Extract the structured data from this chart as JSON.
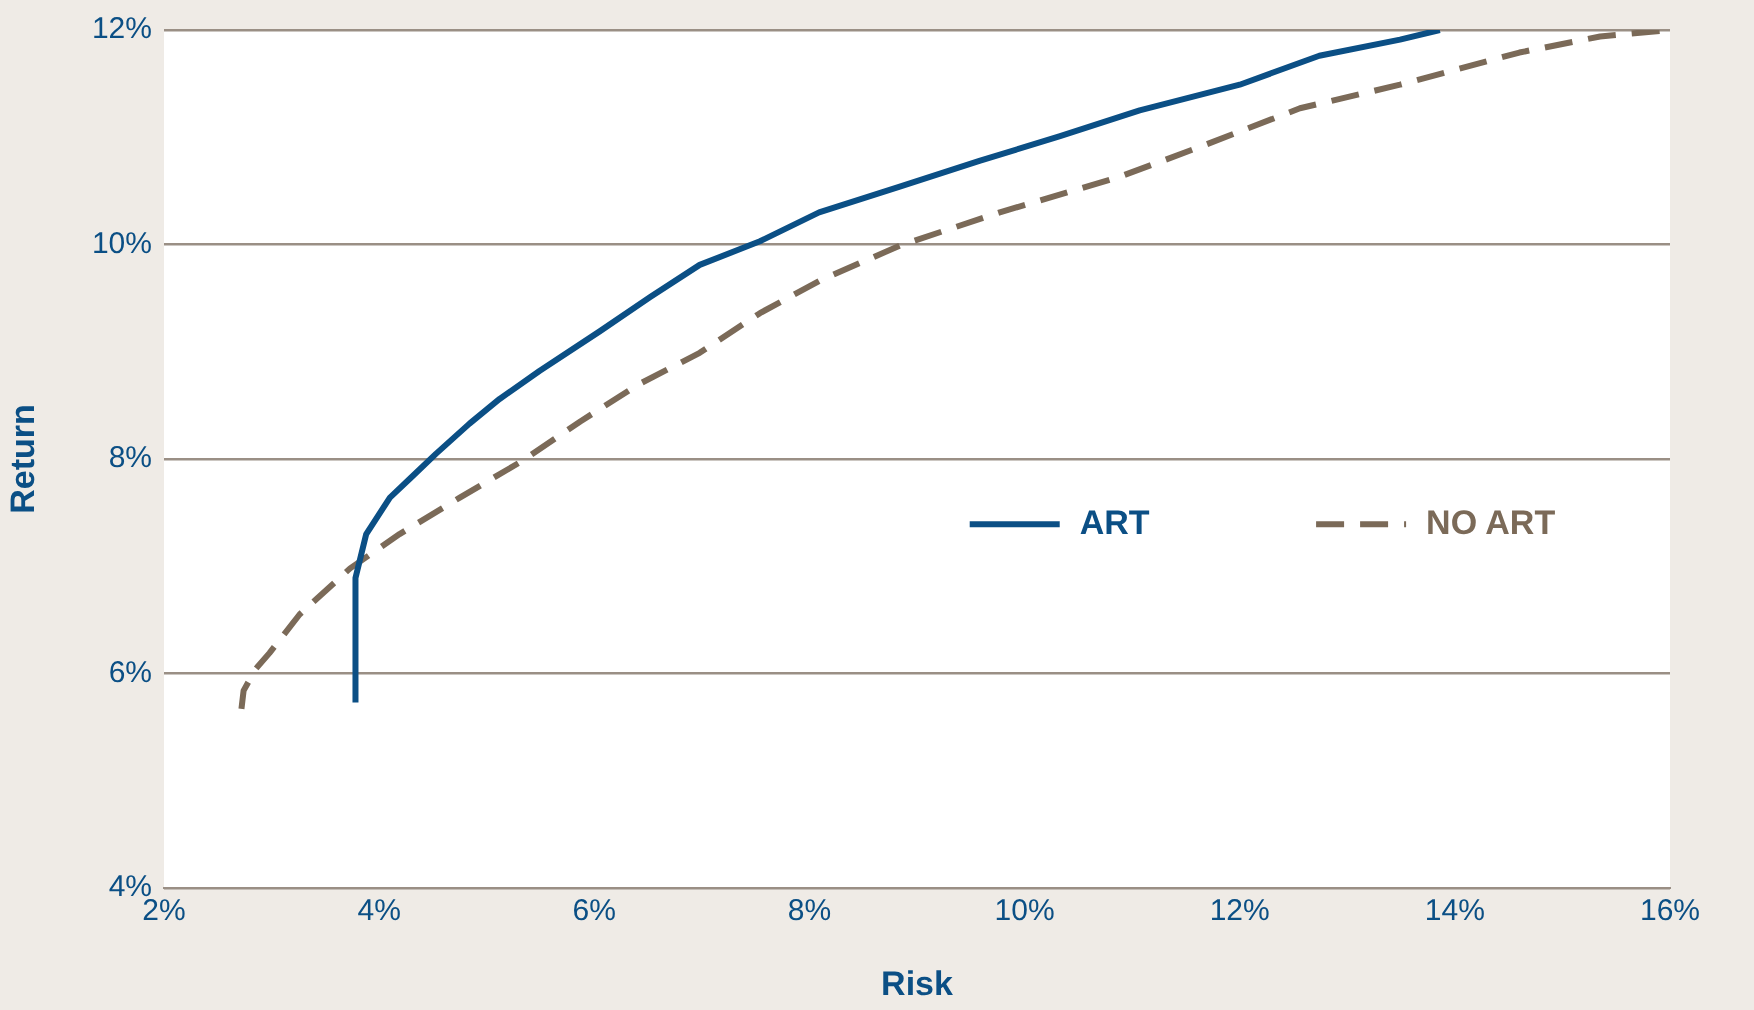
{
  "chart_data": {
    "type": "line",
    "xlabel": "Risk",
    "ylabel": "Return",
    "xlim": [
      2,
      16
    ],
    "xticks": [
      {
        "value": 2,
        "label": "2%"
      },
      {
        "value": 4,
        "label": "4%"
      },
      {
        "value": 6,
        "label": "6%"
      },
      {
        "value": 8,
        "label": "8%"
      },
      {
        "value": 10,
        "label": "10%"
      },
      {
        "value": 12,
        "label": "12%"
      },
      {
        "value": 14,
        "label": "14%"
      },
      {
        "value": 16,
        "label": "16%"
      }
    ],
    "ylim": [
      4,
      12
    ],
    "yticks": [
      {
        "value": 4,
        "label": "4%"
      },
      {
        "value": 6,
        "label": "6%"
      },
      {
        "value": 8,
        "label": "8%"
      },
      {
        "value": 10,
        "label": "10%"
      },
      {
        "value": 12,
        "label": "12%"
      }
    ],
    "grid": "y",
    "legend": "right",
    "marker": "none",
    "series": [
      {
        "name": "ART",
        "color": "#0b4f85",
        "line_style": "solid",
        "x": [
          3.78,
          3.78,
          3.88,
          4.1,
          4.29,
          4.53,
          4.84,
          5.12,
          5.49,
          6.05,
          6.52,
          6.98,
          7.54,
          8.09,
          8.84,
          9.58,
          10.33,
          11.07,
          12.0,
          12.74,
          13.49,
          13.86
        ],
        "values": [
          5.73,
          6.89,
          7.3,
          7.64,
          7.82,
          8.05,
          8.33,
          8.56,
          8.82,
          9.19,
          9.51,
          9.81,
          10.03,
          10.3,
          10.54,
          10.78,
          11.01,
          11.25,
          11.49,
          11.76,
          11.91,
          12.0
        ]
      },
      {
        "name": "NO ART",
        "color": "#7b6a58",
        "line_style": "dashed",
        "x": [
          2.72,
          2.74,
          2.85,
          2.98,
          3.26,
          3.73,
          4.19,
          4.75,
          5.31,
          5.87,
          6.42,
          6.98,
          7.54,
          8.09,
          8.84,
          9.77,
          10.88,
          11.63,
          12.56,
          13.49,
          14.6,
          15.35,
          16.0
        ],
        "values": [
          5.67,
          5.84,
          6.04,
          6.19,
          6.55,
          6.98,
          7.3,
          7.64,
          7.97,
          8.35,
          8.7,
          8.99,
          9.36,
          9.66,
          9.99,
          10.3,
          10.63,
          10.91,
          11.27,
          11.49,
          11.79,
          11.94,
          12.0
        ]
      }
    ]
  }
}
